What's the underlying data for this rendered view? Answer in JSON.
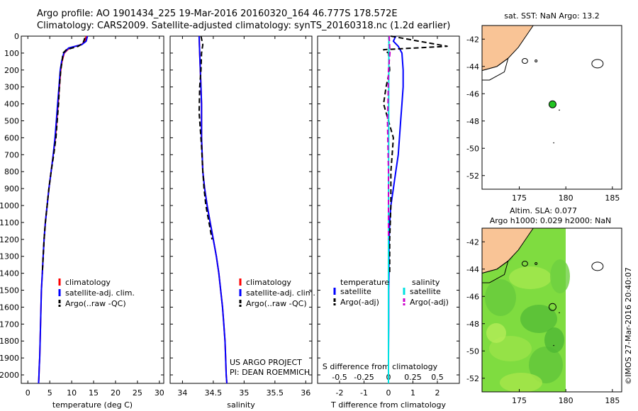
{
  "header": {
    "line1": "Argo profile: AO 1901434_225 19-Mar-2016 20160320_164 46.777S 178.572E",
    "line2": "Climatology: CARS2009. Satellite-adjusted climatology: synTS_20160318.nc (1.2d earlier)"
  },
  "chart_data": [
    {
      "type": "line",
      "id": "temperature",
      "xlabel": "temperature (deg C)",
      "ylabel": "",
      "xlim": [
        -1.5,
        31
      ],
      "ylim": [
        2050,
        0
      ],
      "xticks": [
        0,
        5,
        10,
        15,
        20,
        25,
        30
      ],
      "yticks": [
        0,
        100,
        200,
        300,
        400,
        500,
        600,
        700,
        800,
        900,
        1000,
        1100,
        1200,
        1300,
        1400,
        1500,
        1600,
        1700,
        1800,
        1900,
        2000
      ],
      "series": [
        {
          "name": "climatology",
          "color": "#ff0000",
          "style": "solid",
          "x": [
            13.3,
            13.1,
            12.2,
            9.5,
            8.3,
            7.8,
            7.5,
            7.2,
            6.9,
            6.6,
            6.3,
            5.8,
            5.3,
            4.8,
            4.4,
            4.0,
            3.7,
            3.5,
            3.3,
            3.1,
            3.0,
            2.9,
            2.8,
            2.7,
            2.6,
            2.55,
            2.5,
            2.45
          ],
          "y": [
            0,
            30,
            50,
            70,
            100,
            150,
            200,
            300,
            400,
            500,
            600,
            700,
            800,
            900,
            1000,
            1100,
            1200,
            1300,
            1400,
            1500,
            1600,
            1700,
            1800,
            1900,
            1950,
            2000,
            2030,
            2050
          ]
        },
        {
          "name": "satellite-adj. clim.",
          "color": "#0000ff",
          "style": "solid",
          "x": [
            13.6,
            13.3,
            12.3,
            9.3,
            8.2,
            7.7,
            7.4,
            7.1,
            6.8,
            6.5,
            6.2,
            5.8,
            5.3,
            4.8,
            4.4,
            4.0,
            3.7,
            3.5,
            3.3,
            3.1,
            3.0,
            2.9,
            2.8,
            2.7,
            2.6,
            2.55,
            2.5,
            2.45
          ],
          "y": [
            0,
            30,
            50,
            70,
            100,
            150,
            200,
            300,
            400,
            500,
            600,
            700,
            800,
            900,
            1000,
            1100,
            1200,
            1300,
            1400,
            1500,
            1600,
            1700,
            1800,
            1900,
            1950,
            2000,
            2030,
            2050
          ]
        },
        {
          "name": "Argo(..raw -QC)",
          "color": "#000000",
          "style": "dashed",
          "x": [
            13.0,
            12.6,
            11.5,
            8.8,
            8.0,
            7.8,
            7.5,
            7.2,
            7.0,
            6.7,
            6.4,
            5.9,
            5.3,
            4.8,
            4.4,
            4.0,
            3.7,
            3.5,
            3.3
          ],
          "y": [
            10,
            40,
            60,
            80,
            100,
            150,
            200,
            300,
            400,
            500,
            600,
            700,
            800,
            900,
            1000,
            1100,
            1200,
            1300,
            1400
          ]
        }
      ],
      "legend": [
        "climatology",
        "satellite-adj. clim.",
        "Argo(..raw -QC)"
      ]
    },
    {
      "type": "line",
      "id": "salinity",
      "xlabel": "salinity",
      "xlim": [
        33.8,
        36.1
      ],
      "ylim": [
        2050,
        0
      ],
      "xticks": [
        34,
        34.5,
        35,
        35.5,
        36
      ],
      "series": [
        {
          "name": "climatology",
          "color": "#ff0000",
          "style": "solid",
          "x": [
            34.27,
            34.28,
            34.29,
            34.3,
            34.31,
            34.31,
            34.31,
            34.32,
            34.33,
            34.36,
            34.4,
            34.45,
            34.5,
            34.55,
            34.59,
            34.62,
            34.65,
            34.67,
            34.69,
            34.7,
            34.71,
            34.72
          ],
          "y": [
            0,
            100,
            200,
            300,
            400,
            500,
            600,
            700,
            800,
            900,
            1000,
            1100,
            1200,
            1300,
            1400,
            1500,
            1600,
            1700,
            1800,
            1900,
            2000,
            2050
          ]
        },
        {
          "name": "satellite-adj. clim.",
          "color": "#0000ff",
          "style": "solid",
          "x": [
            34.27,
            34.28,
            34.29,
            34.3,
            34.31,
            34.31,
            34.31,
            34.32,
            34.33,
            34.36,
            34.4,
            34.45,
            34.5,
            34.55,
            34.59,
            34.62,
            34.65,
            34.67,
            34.69,
            34.7,
            34.71,
            34.72
          ],
          "y": [
            0,
            100,
            200,
            300,
            400,
            500,
            600,
            700,
            800,
            900,
            1000,
            1100,
            1200,
            1300,
            1400,
            1500,
            1600,
            1700,
            1800,
            1900,
            2000,
            2050
          ]
        },
        {
          "name": "Argo(..raw -QC)",
          "color": "#000000",
          "style": "dashed",
          "x": [
            34.3,
            34.33,
            34.31,
            34.3,
            34.28,
            34.27,
            34.29,
            34.31,
            34.33,
            34.35,
            34.38,
            34.43,
            34.48
          ],
          "y": [
            0,
            50,
            100,
            200,
            300,
            450,
            550,
            650,
            800,
            900,
            1000,
            1100,
            1200
          ]
        }
      ],
      "legend": [
        "climatology",
        "satellite-adj. clim.",
        "Argo(..raw -QC)"
      ],
      "annotation": [
        "US ARGO PROJECT",
        "PI: DEAN ROEMMICH"
      ]
    },
    {
      "type": "line",
      "id": "difference",
      "xlabel": "T difference from climatology",
      "xlabel_top": "S difference from climatology",
      "xlim": [
        -2.9,
        2.9
      ],
      "ylim": [
        2050,
        0
      ],
      "xticks": [
        -2,
        -1,
        0,
        1,
        2
      ],
      "xticks_top": [
        -0.5,
        -0.25,
        0,
        0.25,
        0.5
      ],
      "series": [
        {
          "name": "temperature satellite",
          "color": "#0000ff",
          "style": "solid",
          "x": [
            0.3,
            0.2,
            0.4,
            0.55,
            0.6,
            0.6,
            0.55,
            0.5,
            0.45,
            0.4,
            0.3,
            0.2,
            0.1,
            0.05,
            0.03,
            0.02,
            0.02,
            0.01,
            0.01,
            0.0,
            0.0
          ],
          "y": [
            0,
            30,
            60,
            100,
            200,
            300,
            400,
            500,
            600,
            700,
            800,
            900,
            1000,
            1100,
            1200,
            1300,
            1400,
            1500,
            1700,
            1900,
            2050
          ]
        },
        {
          "name": "temperature Argo(-adj)",
          "color": "#000000",
          "style": "dashed",
          "x": [
            0.1,
            2.4,
            -0.2,
            0.0,
            0.05,
            -0.1,
            -0.2,
            0.0,
            0.2,
            0.15,
            0.1,
            0.1,
            0.05,
            0.05
          ],
          "y": [
            0,
            60,
            80,
            100,
            200,
            300,
            400,
            500,
            600,
            700,
            800,
            1000,
            1200,
            1400
          ]
        },
        {
          "name": "salinity satellite",
          "color": "#00e0e0",
          "style": "solid",
          "x": [
            0.02,
            0.015,
            0.01,
            0.008,
            0.005,
            0.003,
            0.0,
            0.0,
            0.0,
            0.0
          ],
          "y": [
            0,
            200,
            400,
            600,
            800,
            1000,
            1200,
            1500,
            1800,
            2050
          ]
        },
        {
          "name": "salinity Argo(-adj)",
          "color": "#cc00cc",
          "style": "dashed",
          "x": [
            0.03,
            0.06,
            0.0,
            -0.01,
            -0.02,
            -0.04,
            -0.03,
            0.0,
            0.0,
            0.0
          ],
          "y": [
            0,
            100,
            200,
            300,
            400,
            500,
            600,
            800,
            1000,
            1200
          ]
        }
      ],
      "legend_headers": [
        "temperature",
        "salinity"
      ],
      "legend": [
        "satellite",
        "Argo(-adj)",
        "satellite",
        "Argo(-adj)"
      ]
    }
  ],
  "maps": [
    {
      "id": "sst-map",
      "title": "sat. SST: NaN Argo: 13.2",
      "xticks": [
        175,
        180,
        185
      ],
      "yticks": [
        -42,
        -44,
        -46,
        -48,
        -50,
        -52
      ],
      "xlim": [
        171,
        186
      ],
      "ylim": [
        -53,
        -41
      ],
      "float_lon": 178.572,
      "float_lat": -46.777
    },
    {
      "id": "sla-map",
      "title1": "Altim. SLA: 0.077",
      "title2": "Argo h1000: 0.029 h2000: NaN",
      "xticks": [
        175,
        180,
        185
      ],
      "yticks": [
        -42,
        -44,
        -46,
        -48,
        -50,
        -52
      ],
      "xlim": [
        171,
        186
      ],
      "ylim": [
        -53,
        -41
      ],
      "float_lon": 178.572,
      "float_lat": -46.777
    }
  ],
  "credit": "©IMOS 27-Mar-2016 20:40:07",
  "colors": {
    "land": "#f9c496",
    "field": "#7fdc40",
    "float_marker": "#22c422"
  }
}
